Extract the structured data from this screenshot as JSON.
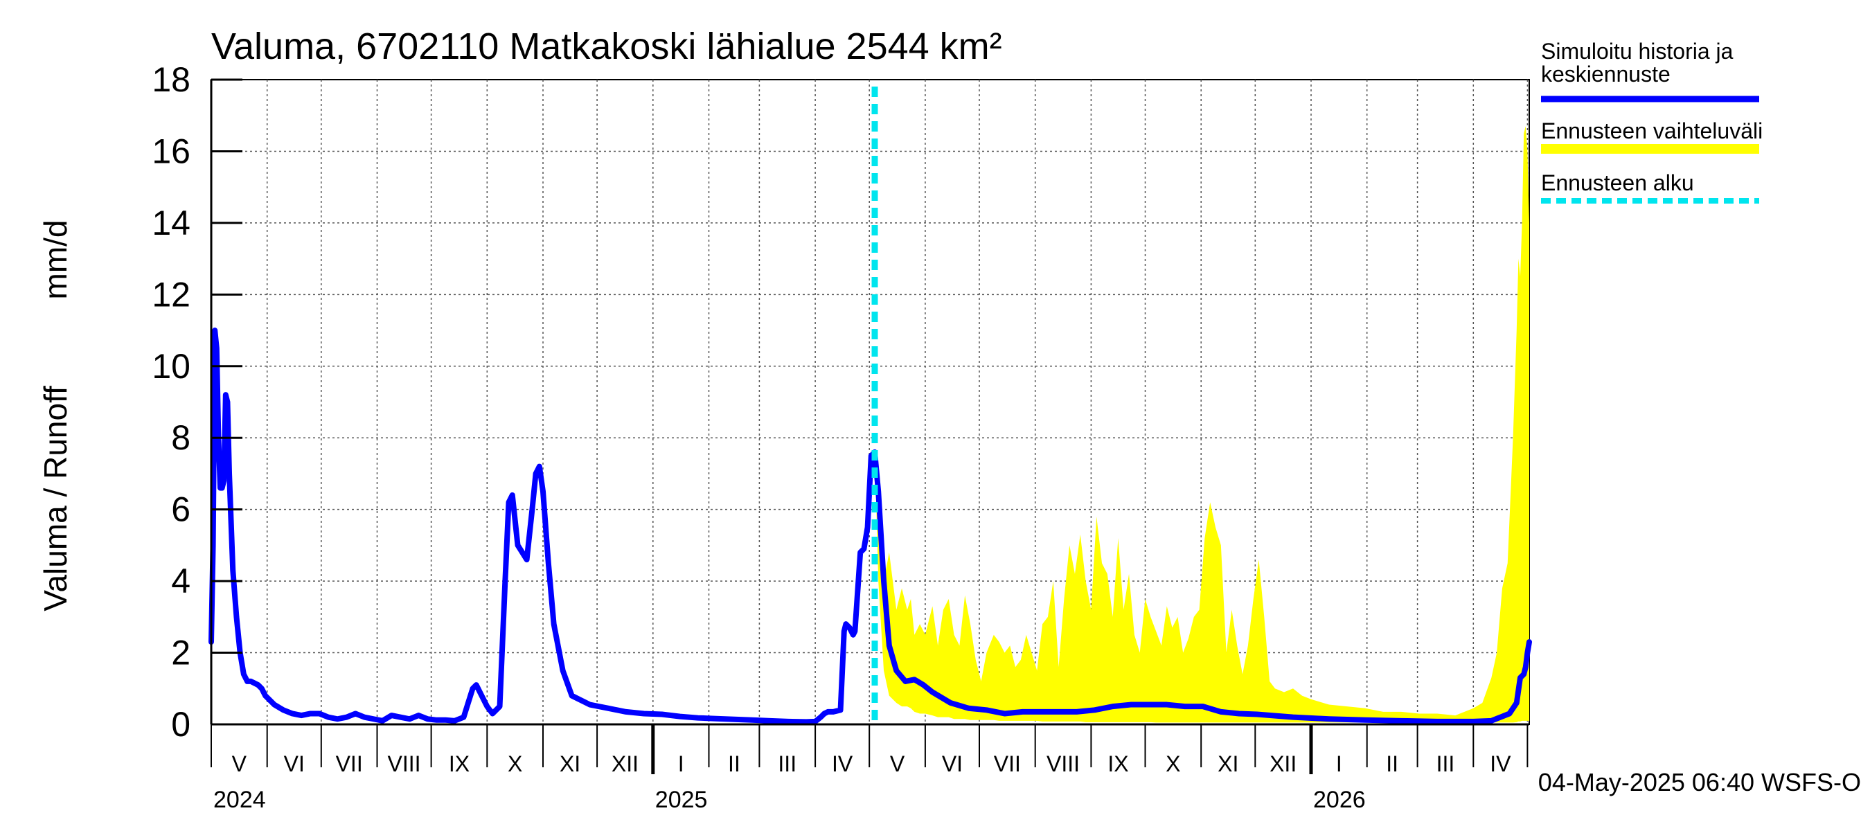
{
  "chart_data": {
    "type": "area",
    "title": "Valuma, 6702110 Matkakoski lähialue 2544 km²",
    "ylabel_left": "Valuma / Runoff",
    "ylabel_unit": "mm/d",
    "ylim": [
      0,
      18
    ],
    "yticks": [
      "0",
      "2",
      "4",
      "6",
      "8",
      "10",
      "12",
      "14",
      "16",
      "18"
    ],
    "x_range_days": [
      0,
      731
    ],
    "month_labels": [
      "V",
      "VI",
      "VII",
      "VIII",
      "IX",
      "X",
      "XI",
      "XII",
      "I",
      "II",
      "III",
      "IV",
      "V",
      "VI",
      "VII",
      "VIII",
      "IX",
      "X",
      "XI",
      "XII",
      "I",
      "II",
      "III",
      "IV"
    ],
    "month_starts_days": [
      0,
      31,
      61,
      92,
      122,
      153,
      184,
      214,
      245,
      276,
      304,
      335,
      365,
      396,
      426,
      457,
      488,
      518,
      549,
      579,
      610,
      641,
      669,
      700,
      730
    ],
    "year_labels": [
      {
        "label": "2024",
        "day": 0
      },
      {
        "label": "2025",
        "day": 245
      },
      {
        "label": "2026",
        "day": 610
      }
    ],
    "forecast_start_day": 368,
    "legend": [
      {
        "line1": "Simuloitu historia ja",
        "line2": "keskiennuste",
        "color": "#0000ff",
        "style": "solid"
      },
      {
        "line1": "Ennusteen vaihteluväli",
        "line2": "",
        "color": "#ffff00",
        "style": "band"
      },
      {
        "line1": "Ennusteen alku",
        "line2": "",
        "color": "#00e5ee",
        "style": "dashed"
      }
    ],
    "footer": "04-May-2025 06:40 WSFS-O",
    "series": [
      {
        "name": "Simuloitu historia ja keskiennuste",
        "color": "#0000ff",
        "x": [
          0,
          1,
          2,
          3,
          4,
          5,
          6,
          7,
          8,
          9,
          10,
          12,
          14,
          16,
          18,
          20,
          22,
          24,
          26,
          28,
          30,
          35,
          40,
          45,
          50,
          55,
          60,
          65,
          70,
          75,
          80,
          85,
          90,
          95,
          100,
          105,
          110,
          115,
          120,
          125,
          130,
          135,
          140,
          145,
          147,
          150,
          153,
          156,
          160,
          163,
          165,
          167,
          170,
          175,
          178,
          180,
          182,
          184,
          187,
          190,
          195,
          200,
          210,
          220,
          230,
          240,
          250,
          260,
          270,
          280,
          290,
          300,
          310,
          320,
          330,
          335,
          338,
          340,
          342,
          345,
          349,
          350,
          351,
          352,
          354,
          356,
          357,
          360,
          362,
          364,
          366,
          368,
          370,
          373,
          376,
          380,
          385,
          390,
          395,
          400,
          410,
          420,
          430,
          440,
          450,
          460,
          470,
          480,
          490,
          500,
          510,
          520,
          530,
          540,
          550,
          560,
          570,
          580,
          600,
          620,
          640,
          660,
          680,
          690,
          700,
          710,
          715,
          720,
          724,
          726,
          728,
          729,
          730,
          731
        ],
        "values": [
          2.3,
          5.0,
          11.0,
          10.5,
          8.0,
          6.6,
          6.6,
          6.8,
          9.2,
          9.0,
          7.0,
          4.3,
          3.0,
          2.0,
          1.4,
          1.2,
          1.2,
          1.15,
          1.1,
          1.0,
          0.8,
          0.55,
          0.4,
          0.3,
          0.25,
          0.3,
          0.3,
          0.2,
          0.15,
          0.2,
          0.3,
          0.2,
          0.15,
          0.1,
          0.25,
          0.2,
          0.15,
          0.25,
          0.15,
          0.12,
          0.12,
          0.1,
          0.2,
          1.0,
          1.1,
          0.8,
          0.5,
          0.3,
          0.5,
          4.0,
          6.2,
          6.4,
          5.0,
          4.6,
          6.0,
          7.0,
          7.2,
          6.5,
          4.5,
          2.8,
          1.5,
          0.8,
          0.55,
          0.45,
          0.35,
          0.3,
          0.28,
          0.22,
          0.18,
          0.16,
          0.14,
          0.12,
          0.1,
          0.08,
          0.07,
          0.08,
          0.2,
          0.3,
          0.35,
          0.35,
          0.4,
          1.5,
          2.6,
          2.8,
          2.7,
          2.5,
          2.6,
          4.8,
          4.9,
          5.5,
          7.5,
          7.6,
          6.5,
          4.0,
          2.2,
          1.5,
          1.2,
          1.25,
          1.1,
          0.9,
          0.6,
          0.45,
          0.4,
          0.3,
          0.35,
          0.35,
          0.35,
          0.35,
          0.4,
          0.5,
          0.55,
          0.55,
          0.55,
          0.5,
          0.5,
          0.35,
          0.3,
          0.28,
          0.2,
          0.15,
          0.12,
          0.1,
          0.08,
          0.08,
          0.08,
          0.1,
          0.2,
          0.3,
          0.6,
          1.3,
          1.4,
          1.6,
          2.0,
          2.3
        ]
      },
      {
        "name": "Ennusteen vaihteluväli",
        "color": "#ffff00",
        "x": [
          368,
          370,
          373,
          376,
          380,
          383,
          386,
          388,
          390,
          393,
          396,
          400,
          403,
          406,
          409,
          412,
          415,
          418,
          421,
          424,
          427,
          430,
          434,
          437,
          440,
          443,
          446,
          449,
          452,
          455,
          458,
          461,
          464,
          467,
          470,
          473,
          476,
          479,
          482,
          485,
          488,
          491,
          494,
          497,
          500,
          503,
          506,
          509,
          512,
          515,
          518,
          521,
          524,
          527,
          530,
          533,
          536,
          539,
          542,
          545,
          548,
          551,
          554,
          557,
          560,
          563,
          566,
          569,
          572,
          575,
          578,
          581,
          584,
          587,
          590,
          595,
          600,
          605,
          610,
          620,
          630,
          640,
          650,
          660,
          670,
          680,
          690,
          700,
          705,
          710,
          713,
          716,
          719,
          722,
          724,
          725,
          726,
          727,
          728,
          729,
          730,
          731
        ],
        "upper": [
          7.6,
          5.5,
          4.0,
          4.8,
          3.2,
          3.8,
          3.2,
          3.5,
          2.5,
          2.8,
          2.5,
          3.3,
          2.2,
          3.2,
          3.5,
          2.5,
          2.2,
          3.6,
          2.8,
          1.8,
          1.2,
          2.0,
          2.5,
          2.3,
          2.0,
          2.2,
          1.6,
          1.8,
          2.5,
          2.0,
          1.5,
          2.8,
          3.0,
          4.0,
          1.6,
          3.5,
          5.0,
          4.2,
          5.3,
          4.0,
          3.2,
          5.8,
          4.5,
          4.2,
          3.0,
          5.2,
          3.2,
          4.2,
          2.5,
          2.0,
          3.5,
          3.0,
          2.6,
          2.2,
          3.3,
          2.7,
          3.0,
          2.0,
          2.4,
          3.0,
          3.2,
          5.2,
          6.2,
          5.5,
          5.0,
          2.0,
          3.2,
          2.2,
          1.4,
          2.2,
          3.5,
          4.6,
          3.0,
          1.2,
          1.0,
          0.9,
          1.0,
          0.8,
          0.7,
          0.55,
          0.5,
          0.45,
          0.35,
          0.35,
          0.3,
          0.3,
          0.25,
          0.45,
          0.6,
          1.3,
          2.0,
          3.8,
          4.5,
          8.0,
          11.0,
          13.0,
          12.5,
          14.0,
          16.5,
          16.7,
          16.0,
          14.0
        ],
        "lower": [
          7.6,
          4.0,
          1.5,
          0.8,
          0.6,
          0.5,
          0.5,
          0.45,
          0.35,
          0.3,
          0.3,
          0.25,
          0.2,
          0.2,
          0.2,
          0.15,
          0.15,
          0.15,
          0.12,
          0.12,
          0.12,
          0.12,
          0.12,
          0.1,
          0.1,
          0.1,
          0.1,
          0.1,
          0.1,
          0.1,
          0.1,
          0.08,
          0.08,
          0.08,
          0.08,
          0.08,
          0.08,
          0.08,
          0.08,
          0.06,
          0.06,
          0.06,
          0.06,
          0.06,
          0.06,
          0.06,
          0.06,
          0.06,
          0.06,
          0.06,
          0.06,
          0.06,
          0.05,
          0.05,
          0.05,
          0.05,
          0.05,
          0.05,
          0.05,
          0.05,
          0.05,
          0.05,
          0.05,
          0.05,
          0.05,
          0.05,
          0.05,
          0.05,
          0.05,
          0.05,
          0.05,
          0.05,
          0.05,
          0.05,
          0.05,
          0.05,
          0.05,
          0.05,
          0.05,
          0.05,
          0.05,
          0.05,
          0.05,
          0.05,
          0.05,
          0.05,
          0.05,
          0.05,
          0.05,
          0.05,
          0.05,
          0.05,
          0.05,
          0.05,
          0.06,
          0.08,
          0.08,
          0.1,
          0.1,
          0.1,
          0.1,
          0.1
        ]
      }
    ]
  }
}
